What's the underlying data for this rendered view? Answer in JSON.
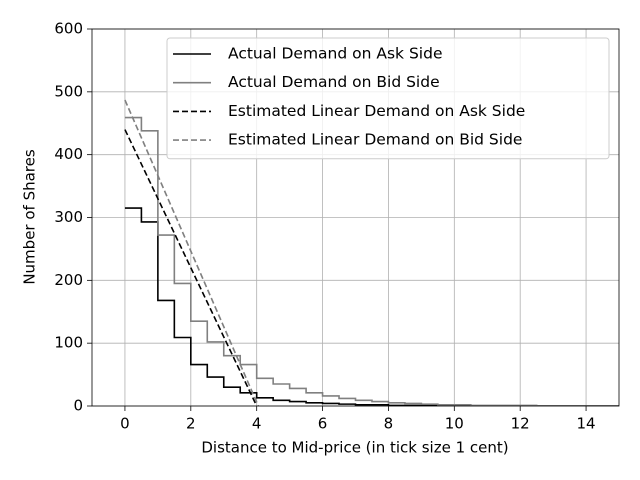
{
  "chart_data": {
    "type": "line",
    "x_label": "Distance to Mid-price (in tick size 1 cent)",
    "y_label": "Number of Shares",
    "xlim": [
      -1,
      15
    ],
    "ylim": [
      0,
      600
    ],
    "xticks": [
      0,
      2,
      4,
      6,
      8,
      10,
      12,
      14
    ],
    "yticks": [
      0,
      100,
      200,
      300,
      400,
      500,
      600
    ],
    "grid": true,
    "legend": "upper right",
    "series": [
      {
        "name": "Actual Demand on Ask Side",
        "color": "#000000",
        "linestyle": "solid",
        "drawstyle": "steps-post",
        "x": [
          0,
          0.5,
          1,
          1.5,
          2,
          2.5,
          3,
          3.5,
          4,
          4.5,
          5,
          5.5,
          6,
          6.5,
          7,
          7.5,
          8,
          8.5,
          9,
          9.5,
          10,
          10.5,
          11,
          11.5,
          12,
          12.5,
          13,
          13.5,
          14,
          14.5,
          15
        ],
        "values": [
          315,
          293,
          168,
          109,
          66,
          46,
          30,
          21,
          13,
          9,
          7,
          5,
          4,
          3,
          2,
          2,
          1,
          1,
          1,
          1,
          0,
          0,
          0,
          0,
          0,
          0,
          0,
          0,
          0,
          0,
          0
        ]
      },
      {
        "name": "Actual Demand on Bid Side",
        "color": "#808080",
        "linestyle": "solid",
        "drawstyle": "steps-post",
        "x": [
          0,
          0.5,
          1,
          1.5,
          2,
          2.5,
          3,
          3.5,
          4,
          4.5,
          5,
          5.5,
          6,
          6.5,
          7,
          7.5,
          8,
          8.5,
          9,
          9.5,
          10,
          10.5,
          11,
          11.5,
          12,
          12.5,
          13,
          13.5,
          14,
          14.5,
          15
        ],
        "values": [
          459,
          438,
          272,
          195,
          135,
          102,
          80,
          66,
          44,
          35,
          28,
          21,
          16,
          12,
          9,
          7,
          5,
          4,
          3,
          2,
          2,
          1,
          1,
          1,
          1,
          0,
          0,
          0,
          0,
          0,
          0
        ]
      },
      {
        "name": "Estimated Linear Demand on Ask Side",
        "color": "#000000",
        "linestyle": "dashed",
        "drawstyle": "default",
        "x": [
          0,
          4
        ],
        "values": [
          440,
          0
        ]
      },
      {
        "name": "Estimated Linear Demand on Bid Side",
        "color": "#808080",
        "linestyle": "dashed",
        "drawstyle": "default",
        "x": [
          0,
          4.05
        ],
        "values": [
          487,
          0
        ]
      }
    ]
  }
}
